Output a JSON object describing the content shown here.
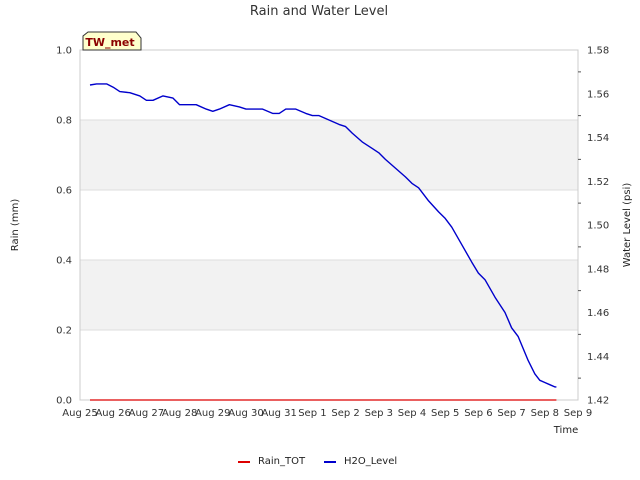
{
  "chart_data": {
    "type": "line",
    "title": "Rain and Water Level",
    "badge": "TW_met",
    "xlabel": "Time",
    "ylabel_left": "Rain (mm)",
    "ylabel_right": "Water Level (psi)",
    "x_ticks": [
      "Aug 25",
      "Aug 26",
      "Aug 27",
      "Aug 28",
      "Aug 29",
      "Aug 30",
      "Aug 31",
      "Sep 1",
      "Sep 2",
      "Sep 3",
      "Sep 4",
      "Sep 5",
      "Sep 6",
      "Sep 7",
      "Sep 8",
      "Sep 9"
    ],
    "ylim_left": [
      0.0,
      1.0
    ],
    "ylim_right": [
      1.42,
      1.58
    ],
    "y_ticks_left": [
      "0.0",
      "0.2",
      "0.4",
      "0.6",
      "0.8",
      "1.0"
    ],
    "y_ticks_right": [
      "1.42",
      "1.44",
      "1.46",
      "1.48",
      "1.50",
      "1.52",
      "1.54",
      "1.56",
      "1.58"
    ],
    "legend_position": "bottom-center",
    "grid": true,
    "colors": {
      "rain": "#dd0000",
      "water": "#0000cc",
      "band": "#f2f2f2",
      "badge_bg": "#ffffcc"
    },
    "series": [
      {
        "name": "Rain_TOT",
        "axis": "left",
        "x": [
          0.3,
          14.35
        ],
        "values": [
          0.0,
          0.0
        ]
      },
      {
        "name": "H2O_Level",
        "axis": "right",
        "x": [
          0.3,
          0.5,
          0.8,
          1.0,
          1.2,
          1.5,
          1.8,
          2.0,
          2.2,
          2.5,
          2.8,
          3.0,
          3.2,
          3.5,
          3.8,
          4.0,
          4.2,
          4.5,
          4.8,
          5.0,
          5.2,
          5.5,
          5.8,
          6.0,
          6.2,
          6.5,
          6.8,
          7.0,
          7.2,
          7.5,
          7.8,
          8.0,
          8.2,
          8.5,
          8.8,
          9.0,
          9.2,
          9.5,
          9.8,
          10.0,
          10.2,
          10.5,
          10.8,
          11.0,
          11.2,
          11.5,
          11.8,
          12.0,
          12.2,
          12.5,
          12.8,
          13.0,
          13.2,
          13.5,
          13.7,
          13.85,
          14.0,
          14.15,
          14.3,
          14.35
        ],
        "values": [
          1.564,
          1.5645,
          1.5645,
          1.563,
          1.561,
          1.5605,
          1.559,
          1.557,
          1.557,
          1.559,
          1.558,
          1.555,
          1.555,
          1.555,
          1.553,
          1.552,
          1.553,
          1.555,
          1.554,
          1.553,
          1.553,
          1.553,
          1.551,
          1.551,
          1.553,
          1.553,
          1.551,
          1.55,
          1.55,
          1.548,
          1.546,
          1.545,
          1.542,
          1.538,
          1.535,
          1.533,
          1.53,
          1.526,
          1.522,
          1.519,
          1.517,
          1.511,
          1.506,
          1.503,
          1.499,
          1.491,
          1.483,
          1.478,
          1.475,
          1.467,
          1.46,
          1.453,
          1.449,
          1.438,
          1.432,
          1.429,
          1.428,
          1.427,
          1.426,
          1.426
        ]
      }
    ]
  }
}
